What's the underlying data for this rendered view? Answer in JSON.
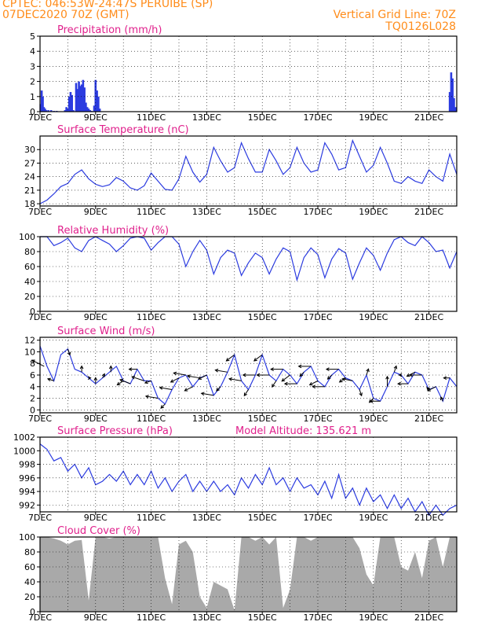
{
  "header": {
    "line1_left": "CPTEC:   046:53W-24:47S   PERUIBE (SP)",
    "line2_left": "07DEC2020 70Z (GMT)",
    "line2_right": "Vertical Grid Line: 70Z",
    "line3_right": "TQ0126L028"
  },
  "colors": {
    "header": "#ff8c1a",
    "title": "#e0208c",
    "line": "#2b3be0",
    "bars": "#2b3be0",
    "cloud": "#a9a9a9",
    "grid": "#000000"
  },
  "x_tick_labels": [
    "7DEC",
    "9DEC",
    "11DEC",
    "13DEC",
    "15DEC",
    "17DEC",
    "19DEC",
    "21DEC"
  ],
  "x_range_days": [
    0,
    15
  ],
  "chart_data": [
    {
      "id": "precip",
      "type": "bar",
      "title": "Precipitation (mm/h)",
      "ylim": [
        0,
        5
      ],
      "yticks": [
        0,
        1,
        2,
        3,
        4,
        5
      ],
      "x_days": [
        0.02,
        0.06,
        0.1,
        0.14,
        0.18,
        0.22,
        0.3,
        0.4,
        0.5,
        0.6,
        0.9,
        0.95,
        1.0,
        1.05,
        1.1,
        1.15,
        1.2,
        1.3,
        1.35,
        1.4,
        1.45,
        1.5,
        1.55,
        1.6,
        1.65,
        1.7,
        1.75,
        1.8,
        1.85,
        1.95,
        2.0,
        2.05,
        2.1,
        2.15,
        14.75,
        14.8,
        14.85,
        14.9,
        14.95
      ],
      "values": [
        0.5,
        1.4,
        1.0,
        0.3,
        0.2,
        0.1,
        0.1,
        0.1,
        0.05,
        0.05,
        0.1,
        0.3,
        0.2,
        1.0,
        1.3,
        1.1,
        0.1,
        1.9,
        1.5,
        2.0,
        1.7,
        1.8,
        2.1,
        1.6,
        0.6,
        0.3,
        0.2,
        0.1,
        0.05,
        0.4,
        2.1,
        1.4,
        1.0,
        0.2,
        1.3,
        2.6,
        2.2,
        0.9,
        0.3
      ]
    },
    {
      "id": "temp",
      "type": "line",
      "title": "Surface Temperature (nC)",
      "ylim": [
        17.5,
        33
      ],
      "yticks": [
        18,
        21,
        24,
        27,
        30
      ],
      "x_days": [
        0.0,
        0.25,
        0.5,
        0.75,
        1.0,
        1.25,
        1.5,
        1.75,
        2.0,
        2.25,
        2.5,
        2.75,
        3.0,
        3.25,
        3.5,
        3.75,
        4.0,
        4.25,
        4.5,
        4.75,
        5.0,
        5.25,
        5.5,
        5.75,
        6.0,
        6.25,
        6.5,
        6.75,
        7.0,
        7.25,
        7.5,
        7.75,
        8.0,
        8.25,
        8.5,
        8.75,
        9.0,
        9.25,
        9.5,
        9.75,
        10.0,
        10.25,
        10.5,
        10.75,
        11.0,
        11.25,
        11.5,
        11.75,
        12.0,
        12.25,
        12.5,
        12.75,
        13.0,
        13.25,
        13.5,
        13.75,
        14.0,
        14.25,
        14.5,
        14.75,
        15.0
      ],
      "values": [
        18.0,
        18.8,
        20.2,
        21.8,
        22.5,
        24.5,
        25.5,
        23.5,
        22.3,
        21.8,
        22.2,
        23.8,
        23.0,
        21.5,
        21.0,
        22.0,
        24.8,
        23.0,
        21.2,
        21.0,
        23.5,
        28.5,
        25.0,
        22.8,
        24.5,
        30.5,
        27.5,
        25.0,
        26.0,
        31.5,
        28.0,
        25.0,
        25.0,
        30.0,
        27.5,
        24.5,
        26.0,
        30.5,
        27.0,
        25.0,
        25.5,
        31.5,
        29.0,
        25.5,
        26.0,
        32.0,
        28.5,
        25.0,
        26.5,
        30.5,
        27.0,
        23.0,
        22.5,
        24.0,
        23.0,
        22.5,
        25.5,
        24.0,
        23.0,
        29.0,
        24.5
      ]
    },
    {
      "id": "rh",
      "type": "line",
      "title": "Relative Humidity (%)",
      "ylim": [
        0,
        100
      ],
      "yticks": [
        0,
        20,
        40,
        60,
        80,
        100
      ],
      "x_days": [
        0.0,
        0.25,
        0.5,
        0.75,
        1.0,
        1.25,
        1.5,
        1.75,
        2.0,
        2.25,
        2.5,
        2.75,
        3.0,
        3.25,
        3.5,
        3.75,
        4.0,
        4.25,
        4.5,
        4.75,
        5.0,
        5.25,
        5.5,
        5.75,
        6.0,
        6.25,
        6.5,
        6.75,
        7.0,
        7.25,
        7.5,
        7.75,
        8.0,
        8.25,
        8.5,
        8.75,
        9.0,
        9.25,
        9.5,
        9.75,
        10.0,
        10.25,
        10.5,
        10.75,
        11.0,
        11.25,
        11.5,
        11.75,
        12.0,
        12.25,
        12.5,
        12.75,
        13.0,
        13.25,
        13.5,
        13.75,
        14.0,
        14.25,
        14.5,
        14.75,
        15.0
      ],
      "values": [
        100,
        100,
        88,
        92,
        98,
        85,
        80,
        95,
        100,
        95,
        90,
        80,
        88,
        98,
        100,
        98,
        82,
        92,
        100,
        100,
        90,
        60,
        80,
        95,
        82,
        50,
        72,
        82,
        78,
        48,
        65,
        78,
        72,
        50,
        70,
        85,
        80,
        42,
        72,
        85,
        76,
        45,
        70,
        84,
        78,
        43,
        65,
        85,
        75,
        55,
        78,
        96,
        100,
        92,
        88,
        100,
        92,
        80,
        82,
        58,
        80
      ]
    },
    {
      "id": "wind",
      "type": "line",
      "title": "Surface Wind (m/s)",
      "ylim": [
        -0.5,
        12.5
      ],
      "yticks": [
        0,
        2,
        4,
        6,
        8,
        10,
        12
      ],
      "x_days": [
        0.0,
        0.25,
        0.5,
        0.75,
        1.0,
        1.25,
        1.5,
        1.75,
        2.0,
        2.25,
        2.5,
        2.75,
        3.0,
        3.25,
        3.5,
        3.75,
        4.0,
        4.25,
        4.5,
        4.75,
        5.0,
        5.25,
        5.5,
        5.75,
        6.0,
        6.25,
        6.5,
        6.75,
        7.0,
        7.25,
        7.5,
        7.75,
        8.0,
        8.25,
        8.5,
        8.75,
        9.0,
        9.25,
        9.5,
        9.75,
        10.0,
        10.25,
        10.5,
        10.75,
        11.0,
        11.25,
        11.5,
        11.75,
        12.0,
        12.25,
        12.5,
        12.75,
        13.0,
        13.25,
        13.5,
        13.75,
        14.0,
        14.25,
        14.5,
        14.75,
        15.0
      ],
      "values": [
        11.0,
        7.5,
        5.0,
        9.5,
        10.5,
        7.0,
        6.5,
        5.5,
        4.5,
        5.5,
        6.5,
        7.5,
        5.0,
        4.5,
        7.0,
        5.0,
        5.0,
        2.0,
        1.0,
        3.5,
        5.5,
        6.0,
        4.0,
        5.5,
        6.0,
        2.5,
        4.0,
        6.5,
        9.5,
        5.0,
        3.5,
        6.0,
        9.5,
        6.0,
        5.0,
        7.0,
        6.0,
        4.5,
        6.5,
        7.5,
        5.0,
        4.0,
        6.0,
        7.0,
        5.5,
        5.0,
        3.5,
        6.0,
        2.0,
        1.5,
        4.0,
        6.5,
        6.0,
        4.5,
        6.5,
        6.0,
        3.5,
        4.0,
        1.5,
        5.5,
        4.0
      ],
      "arrows_x_days": [
        0.15,
        0.5,
        1.0,
        1.5,
        1.75,
        2.0,
        2.25,
        2.55,
        3.0,
        3.25,
        3.5,
        3.75,
        4.0,
        4.25,
        4.5,
        4.75,
        5.0,
        5.25,
        5.5,
        5.75,
        6.0,
        6.25,
        6.5,
        6.75,
        7.0,
        7.25,
        7.5,
        7.75,
        8.0,
        8.25,
        8.5,
        8.75,
        9.0,
        9.25,
        9.5,
        9.75,
        10.0,
        10.25,
        10.5,
        10.75,
        11.0,
        11.25,
        11.5,
        11.75,
        12.0,
        12.25,
        12.5,
        12.75,
        13.0,
        13.25,
        13.5,
        13.75,
        14.0,
        14.25,
        14.5,
        14.75
      ],
      "arrows_u": [
        -6,
        -3,
        1,
        0,
        1,
        0,
        1,
        0,
        -3,
        -5,
        -4,
        -6,
        -3,
        -6,
        -2,
        -6,
        -4,
        -6,
        -4,
        -6,
        -4,
        -6,
        -2,
        -6,
        -4,
        -6,
        -2,
        -6,
        -4,
        -6,
        -2,
        -6,
        -4,
        -6,
        -2,
        -6,
        -4,
        -6,
        -2,
        -6,
        -3,
        -5,
        1,
        1,
        -2,
        -5,
        0,
        1,
        -1,
        -5,
        -4,
        -6,
        -1,
        -4,
        -1,
        -3
      ],
      "arrows_v": [
        3,
        1,
        -3,
        3,
        0,
        3,
        2,
        3,
        -2,
        2,
        0,
        2,
        -1,
        1,
        -2,
        1,
        -2,
        1,
        -2,
        1,
        -2,
        1,
        -2,
        1,
        -3,
        1,
        -3,
        0,
        -3,
        0,
        -3,
        0,
        -3,
        0,
        -2,
        0,
        -2,
        0,
        -2,
        0,
        -2,
        1,
        -3,
        3,
        -2,
        0,
        5,
        3,
        0,
        0,
        -2,
        0,
        1,
        -2,
        2,
        0
      ]
    },
    {
      "id": "pres",
      "type": "line",
      "title": "Surface Pressure (hPa)",
      "subtitle": "Model Altitude: 135.621 m",
      "ylim": [
        991,
        1002
      ],
      "yticks": [
        992,
        994,
        996,
        998,
        1000,
        1002
      ],
      "x_days": [
        0.0,
        0.25,
        0.5,
        0.75,
        1.0,
        1.25,
        1.5,
        1.75,
        2.0,
        2.25,
        2.5,
        2.75,
        3.0,
        3.25,
        3.5,
        3.75,
        4.0,
        4.25,
        4.5,
        4.75,
        5.0,
        5.25,
        5.5,
        5.75,
        6.0,
        6.25,
        6.5,
        6.75,
        7.0,
        7.25,
        7.5,
        7.75,
        8.0,
        8.25,
        8.5,
        8.75,
        9.0,
        9.25,
        9.5,
        9.75,
        10.0,
        10.25,
        10.5,
        10.75,
        11.0,
        11.25,
        11.5,
        11.75,
        12.0,
        12.25,
        12.5,
        12.75,
        13.0,
        13.25,
        13.5,
        13.75,
        14.0,
        14.25,
        14.5,
        14.75,
        15.0
      ],
      "values": [
        1001.0,
        1000.2,
        998.5,
        999.0,
        997.0,
        998.0,
        996.0,
        997.5,
        995.0,
        995.5,
        996.5,
        995.5,
        997.0,
        995.0,
        996.5,
        995.0,
        997.0,
        994.5,
        996.0,
        994.0,
        995.5,
        996.5,
        994.0,
        995.5,
        994.0,
        995.5,
        994.0,
        995.0,
        993.5,
        996.0,
        994.5,
        996.5,
        995.0,
        997.5,
        995.0,
        996.0,
        994.0,
        996.0,
        994.5,
        995.0,
        993.5,
        995.5,
        993.0,
        996.5,
        993.0,
        994.5,
        992.0,
        994.5,
        992.5,
        993.5,
        991.5,
        993.5,
        991.5,
        993.0,
        991.0,
        992.5,
        990.5,
        992.0,
        990.5,
        991.5,
        992.0
      ]
    },
    {
      "id": "cloud",
      "type": "area",
      "title": "Cloud Cover (%)",
      "ylim": [
        0,
        100
      ],
      "yticks": [
        0,
        20,
        40,
        60,
        80,
        100
      ],
      "x_days": [
        0.0,
        0.25,
        0.5,
        0.75,
        1.0,
        1.25,
        1.5,
        1.75,
        2.0,
        2.25,
        2.5,
        2.75,
        3.0,
        3.25,
        3.5,
        3.75,
        4.0,
        4.25,
        4.5,
        4.75,
        5.0,
        5.25,
        5.5,
        5.75,
        6.0,
        6.25,
        6.5,
        6.75,
        7.0,
        7.25,
        7.5,
        7.75,
        8.0,
        8.25,
        8.5,
        8.75,
        9.0,
        9.25,
        9.5,
        9.75,
        10.0,
        10.25,
        10.5,
        10.75,
        11.0,
        11.25,
        11.5,
        11.75,
        12.0,
        12.25,
        12.5,
        12.75,
        13.0,
        13.25,
        13.5,
        13.75,
        14.0,
        14.25,
        14.5,
        14.75,
        15.0
      ],
      "values": [
        100,
        100,
        98,
        95,
        90,
        95,
        96,
        15,
        100,
        100,
        98,
        100,
        100,
        100,
        100,
        100,
        100,
        100,
        45,
        10,
        90,
        95,
        80,
        20,
        5,
        40,
        35,
        30,
        2,
        100,
        100,
        95,
        100,
        90,
        100,
        5,
        30,
        100,
        100,
        95,
        100,
        100,
        100,
        100,
        100,
        100,
        85,
        50,
        35,
        100,
        100,
        100,
        60,
        55,
        80,
        45,
        95,
        100,
        60,
        100,
        100
      ]
    }
  ]
}
